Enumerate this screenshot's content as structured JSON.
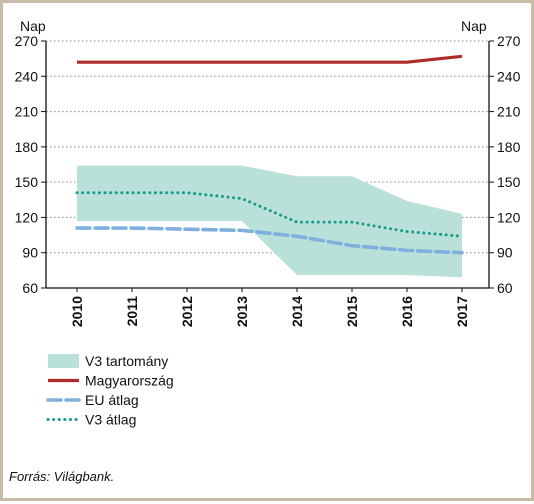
{
  "chart_data": {
    "type": "line",
    "title": "",
    "y_unit_left": "Nap",
    "y_unit_right": "Nap",
    "ylim": [
      60,
      270
    ],
    "yticks": [
      60,
      90,
      120,
      150,
      180,
      210,
      240,
      270
    ],
    "categories": [
      "2010",
      "2011",
      "2012",
      "2013",
      "2014",
      "2015",
      "2016",
      "2017"
    ],
    "range": {
      "name": "V3 tartomány",
      "color": "#b9e0d9",
      "low": [
        117,
        117,
        117,
        117,
        71,
        71,
        71,
        69
      ],
      "high": [
        164,
        164,
        164,
        164,
        155,
        155,
        134,
        123
      ]
    },
    "series": [
      {
        "name": "Magyarország",
        "style": "solid",
        "color": "#b02a2a",
        "values": [
          252,
          252,
          252,
          252,
          252,
          252,
          252,
          257
        ]
      },
      {
        "name": "EU átlag",
        "style": "dashed",
        "color": "#7fb0dd",
        "values": [
          111,
          111,
          110,
          109,
          104,
          96,
          92,
          90
        ]
      },
      {
        "name": "V3 átlag",
        "style": "dotted",
        "color": "#1a9e8a",
        "values": [
          141,
          141,
          141,
          136,
          116,
          116,
          108,
          104
        ]
      }
    ],
    "grid": "dotted-horizontal",
    "legend_position": "bottom-left"
  },
  "source": "Forrás: Világbank."
}
